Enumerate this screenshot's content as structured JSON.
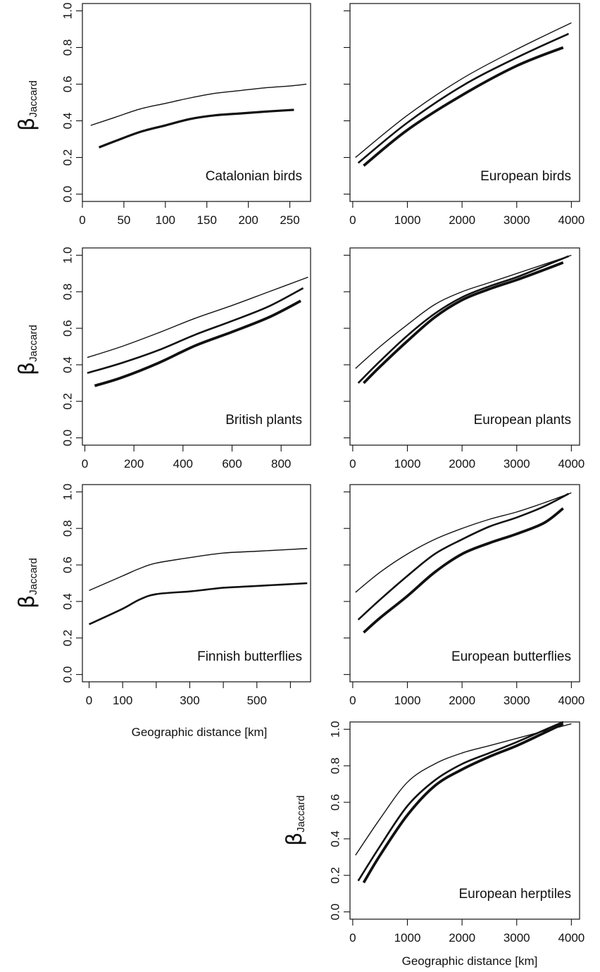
{
  "figure": {
    "ylabel_symbol": "β",
    "ylabel_subscript": "Jaccard",
    "xlabel": "Geographic distance [km]"
  },
  "chart_data": [
    {
      "type": "line",
      "label": "Catalonian birds",
      "xlim": [
        0,
        275
      ],
      "ylim": [
        0,
        1.0
      ],
      "x_ticks": [
        0,
        50,
        100,
        150,
        200,
        250
      ],
      "y_ticks": [
        0.0,
        0.2,
        0.4,
        0.6,
        0.8,
        1.0
      ],
      "y_tick_labels": [
        "0.0",
        "0.2",
        "0.4",
        "0.6",
        "0.8",
        "1.0"
      ],
      "y_tick_labels_shown": true,
      "series": [
        {
          "x": [
            10,
            40,
            70,
            100,
            130,
            160,
            190,
            220,
            250,
            270
          ],
          "y": [
            0.375,
            0.42,
            0.465,
            0.495,
            0.525,
            0.55,
            0.565,
            0.58,
            0.59,
            0.6
          ],
          "width": 1.4
        },
        {
          "x": [
            20,
            40,
            70,
            100,
            130,
            160,
            190,
            220,
            255
          ],
          "y": [
            0.255,
            0.29,
            0.34,
            0.375,
            0.41,
            0.43,
            0.44,
            0.45,
            0.46
          ],
          "width": 3.2
        }
      ]
    },
    {
      "type": "line",
      "label": "European birds",
      "xlim": [
        -50,
        4150
      ],
      "ylim": [
        0,
        1.0
      ],
      "x_ticks": [
        0,
        1000,
        2000,
        3000,
        4000
      ],
      "y_ticks": [
        0.0,
        0.2,
        0.4,
        0.6,
        0.8,
        1.0
      ],
      "y_tick_labels_shown": false,
      "series": [
        {
          "x": [
            50,
            1000,
            2000,
            3000,
            4000
          ],
          "y": [
            0.2,
            0.43,
            0.63,
            0.79,
            0.935
          ],
          "width": 1.4
        },
        {
          "x": [
            100,
            1000,
            2000,
            3000,
            3950
          ],
          "y": [
            0.17,
            0.39,
            0.59,
            0.745,
            0.875
          ],
          "width": 2.6
        },
        {
          "x": [
            200,
            1000,
            2000,
            3000,
            3850
          ],
          "y": [
            0.155,
            0.35,
            0.54,
            0.7,
            0.8
          ],
          "width": 3.8
        }
      ]
    },
    {
      "type": "line",
      "label": "British plants",
      "xlim": [
        -10,
        920
      ],
      "ylim": [
        0,
        1.0
      ],
      "x_ticks": [
        0,
        200,
        400,
        600,
        800
      ],
      "y_ticks": [
        0.0,
        0.2,
        0.4,
        0.6,
        0.8,
        1.0
      ],
      "y_tick_labels": [
        "0.0",
        "0.2",
        "0.4",
        "0.6",
        "0.8",
        "1.0"
      ],
      "y_tick_labels_shown": true,
      "series": [
        {
          "x": [
            10,
            150,
            300,
            450,
            600,
            750,
            910
          ],
          "y": [
            0.44,
            0.5,
            0.575,
            0.655,
            0.725,
            0.8,
            0.88
          ],
          "width": 1.4
        },
        {
          "x": [
            10,
            150,
            300,
            450,
            600,
            750,
            890
          ],
          "y": [
            0.355,
            0.41,
            0.48,
            0.565,
            0.64,
            0.72,
            0.82
          ],
          "width": 2.6
        },
        {
          "x": [
            40,
            150,
            300,
            450,
            600,
            750,
            880
          ],
          "y": [
            0.285,
            0.33,
            0.41,
            0.505,
            0.58,
            0.66,
            0.75
          ],
          "width": 3.8
        }
      ]
    },
    {
      "type": "line",
      "label": "European plants",
      "xlim": [
        -50,
        4150
      ],
      "ylim": [
        0,
        1.0
      ],
      "x_ticks": [
        0,
        1000,
        2000,
        3000,
        4000
      ],
      "y_ticks": [
        0.0,
        0.2,
        0.4,
        0.6,
        0.8,
        1.0
      ],
      "y_tick_labels_shown": false,
      "series": [
        {
          "x": [
            50,
            500,
            1000,
            1500,
            2000,
            2500,
            3000,
            3500,
            4000
          ],
          "y": [
            0.38,
            0.5,
            0.62,
            0.73,
            0.8,
            0.85,
            0.9,
            0.95,
            1.0
          ],
          "width": 1.4
        },
        {
          "x": [
            100,
            500,
            1000,
            1500,
            2000,
            2500,
            3000,
            3500,
            3950
          ],
          "y": [
            0.3,
            0.42,
            0.56,
            0.68,
            0.77,
            0.83,
            0.88,
            0.94,
            0.995
          ],
          "width": 2.6
        },
        {
          "x": [
            200,
            500,
            1000,
            1500,
            2000,
            2500,
            3000,
            3500,
            3850
          ],
          "y": [
            0.3,
            0.39,
            0.53,
            0.66,
            0.755,
            0.815,
            0.865,
            0.92,
            0.96
          ],
          "width": 3.8
        }
      ]
    },
    {
      "type": "line",
      "label": "Finnish butterflies",
      "xlim": [
        -20,
        660
      ],
      "ylim": [
        0,
        1.0
      ],
      "x_ticks": [
        0,
        100,
        300,
        500
      ],
      "x_minor_ticks": [
        200,
        400,
        600
      ],
      "y_ticks": [
        0.0,
        0.2,
        0.4,
        0.6,
        0.8,
        1.0
      ],
      "y_tick_labels": [
        "0.0",
        "0.2",
        "0.4",
        "0.6",
        "0.8",
        "1.0"
      ],
      "y_tick_labels_shown": true,
      "series": [
        {
          "x": [
            0,
            100,
            150,
            200,
            300,
            400,
            500,
            650
          ],
          "y": [
            0.46,
            0.54,
            0.58,
            0.61,
            0.64,
            0.665,
            0.675,
            0.69
          ],
          "width": 1.4
        },
        {
          "x": [
            0,
            100,
            150,
            200,
            300,
            350,
            400,
            450,
            500,
            650
          ],
          "y": [
            0.275,
            0.36,
            0.41,
            0.44,
            0.455,
            0.465,
            0.475,
            0.48,
            0.485,
            0.5
          ],
          "width": 2.6
        }
      ]
    },
    {
      "type": "line",
      "label": "European butterflies",
      "xlim": [
        -50,
        4150
      ],
      "ylim": [
        0,
        1.0
      ],
      "x_ticks": [
        0,
        1000,
        2000,
        3000,
        4000
      ],
      "y_ticks": [
        0.0,
        0.2,
        0.4,
        0.6,
        0.8,
        1.0
      ],
      "y_tick_labels_shown": false,
      "series": [
        {
          "x": [
            50,
            500,
            1000,
            1500,
            2000,
            2500,
            3000,
            3500,
            4000
          ],
          "y": [
            0.45,
            0.56,
            0.66,
            0.74,
            0.8,
            0.85,
            0.89,
            0.94,
            0.995
          ],
          "width": 1.4
        },
        {
          "x": [
            100,
            500,
            1000,
            1500,
            2000,
            2500,
            3000,
            3500,
            3950
          ],
          "y": [
            0.3,
            0.41,
            0.54,
            0.66,
            0.74,
            0.81,
            0.86,
            0.92,
            0.99
          ],
          "width": 2.6
        },
        {
          "x": [
            200,
            500,
            1000,
            1500,
            2000,
            2500,
            3000,
            3500,
            3850
          ],
          "y": [
            0.23,
            0.31,
            0.43,
            0.56,
            0.66,
            0.72,
            0.77,
            0.83,
            0.91
          ],
          "width": 3.8
        }
      ]
    },
    {
      "type": "line",
      "label": "European herptiles",
      "xlim": [
        -50,
        4150
      ],
      "ylim": [
        0,
        1.0
      ],
      "x_ticks": [
        0,
        1000,
        2000,
        3000,
        4000
      ],
      "y_ticks": [
        0.0,
        0.2,
        0.4,
        0.6,
        0.8,
        1.0
      ],
      "y_tick_labels": [
        "0.0",
        "0.2",
        "0.4",
        "0.6",
        "0.8",
        "1.0"
      ],
      "y_tick_labels_shown": true,
      "series": [
        {
          "x": [
            50,
            500,
            1000,
            1500,
            2000,
            2500,
            3000,
            3500,
            4000
          ],
          "y": [
            0.31,
            0.51,
            0.71,
            0.81,
            0.87,
            0.91,
            0.95,
            0.99,
            1.03
          ],
          "width": 1.4
        },
        {
          "x": [
            100,
            500,
            1000,
            1500,
            2000,
            2500,
            3000,
            3500,
            3850
          ],
          "y": [
            0.17,
            0.36,
            0.58,
            0.72,
            0.81,
            0.87,
            0.93,
            0.995,
            1.04
          ],
          "width": 2.6
        },
        {
          "x": [
            200,
            500,
            1000,
            1500,
            2000,
            2500,
            3000,
            3500,
            3850
          ],
          "y": [
            0.16,
            0.31,
            0.53,
            0.69,
            0.78,
            0.85,
            0.91,
            0.98,
            1.03
          ],
          "width": 3.8
        }
      ]
    }
  ]
}
